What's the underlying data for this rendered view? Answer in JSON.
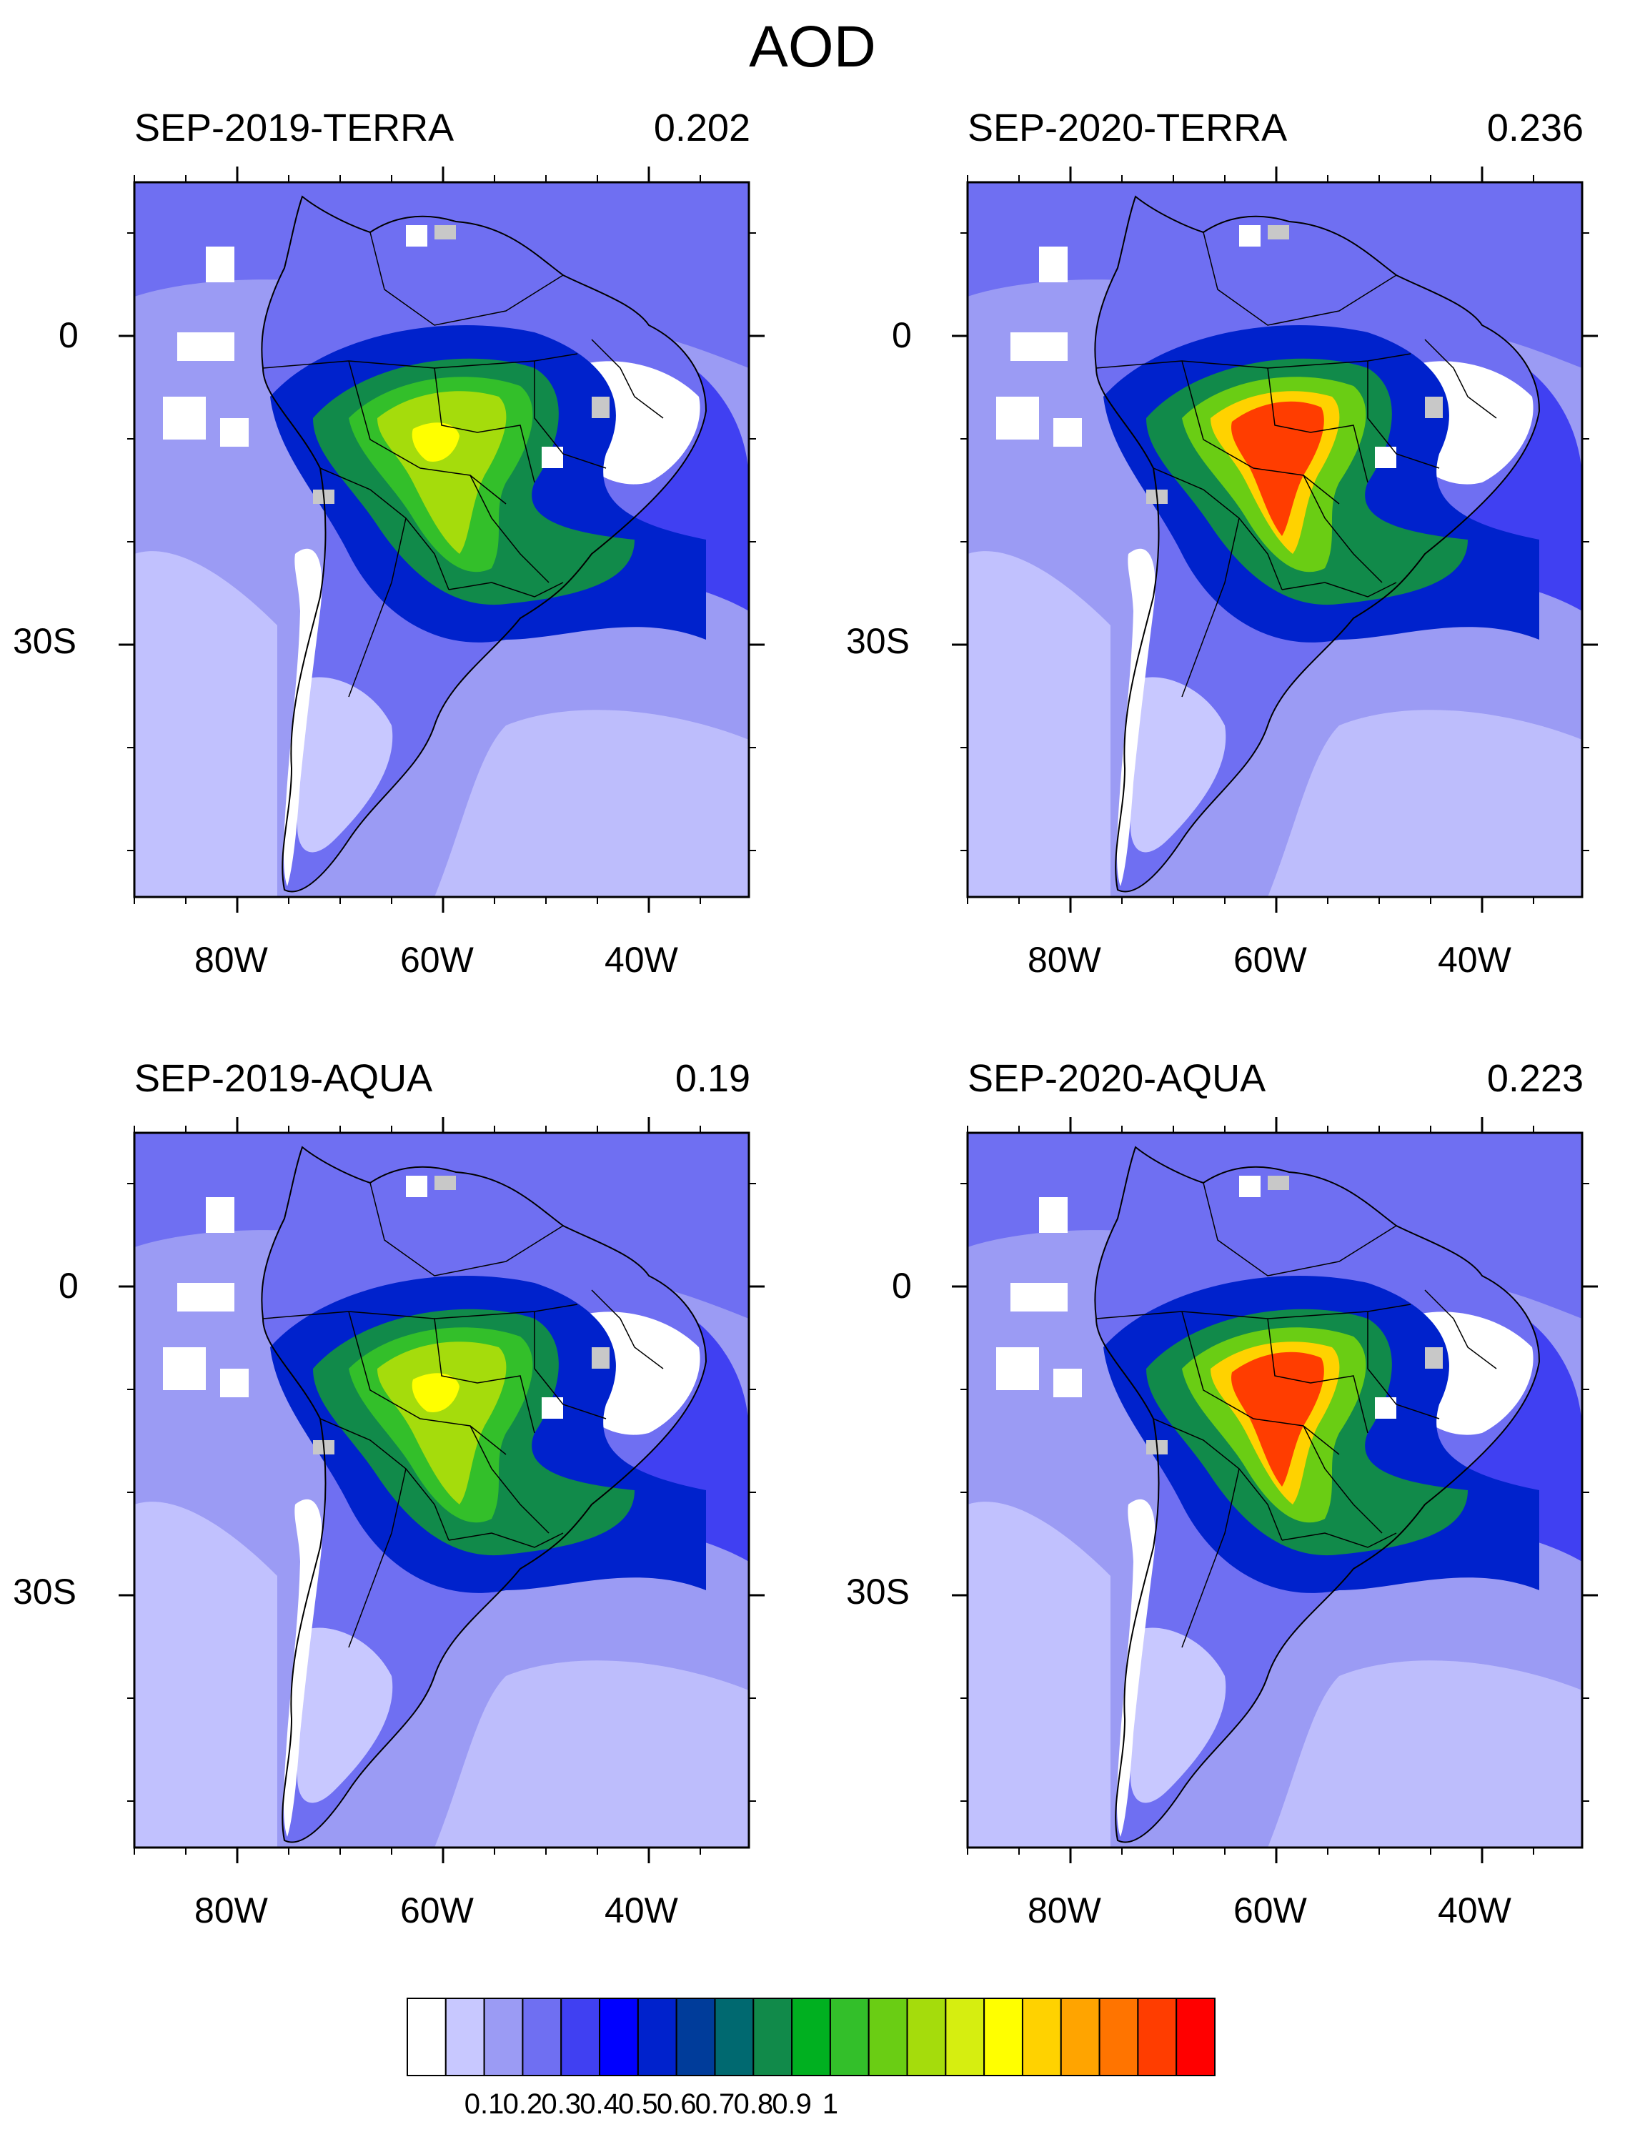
{
  "title": "AOD",
  "panels": [
    {
      "name": "SEP-2019-TERRA",
      "mean": "0.202",
      "intensity": 0.55
    },
    {
      "name": "SEP-2020-TERRA",
      "mean": "0.236",
      "intensity": 1.0
    },
    {
      "name": "SEP-2019-AQUA",
      "mean": "0.19",
      "intensity": 0.5
    },
    {
      "name": "SEP-2020-AQUA",
      "mean": "0.223",
      "intensity": 0.95
    }
  ],
  "axes": {
    "lat_ticks": [
      "0",
      "30S"
    ],
    "lon_ticks": [
      "80W",
      "60W",
      "40W"
    ]
  },
  "colorbar": {
    "labels": [
      "0.1",
      "0.2",
      "0.3",
      "0.4",
      "0.5",
      "0.6",
      "0.7",
      "0.8",
      "0.9",
      "1"
    ],
    "colors": [
      "#ffffff",
      "#c8c8ff",
      "#9b9bf4",
      "#6f6ff2",
      "#4040f2",
      "#0000ff",
      "#0022cc",
      "#003c9a",
      "#006970",
      "#118a4a",
      "#00b020",
      "#33bf2a",
      "#6acd14",
      "#a5dc0c",
      "#d6ee10",
      "#ffff00",
      "#ffd200",
      "#ffa400",
      "#ff7400",
      "#ff3d00",
      "#ff0000"
    ]
  }
}
